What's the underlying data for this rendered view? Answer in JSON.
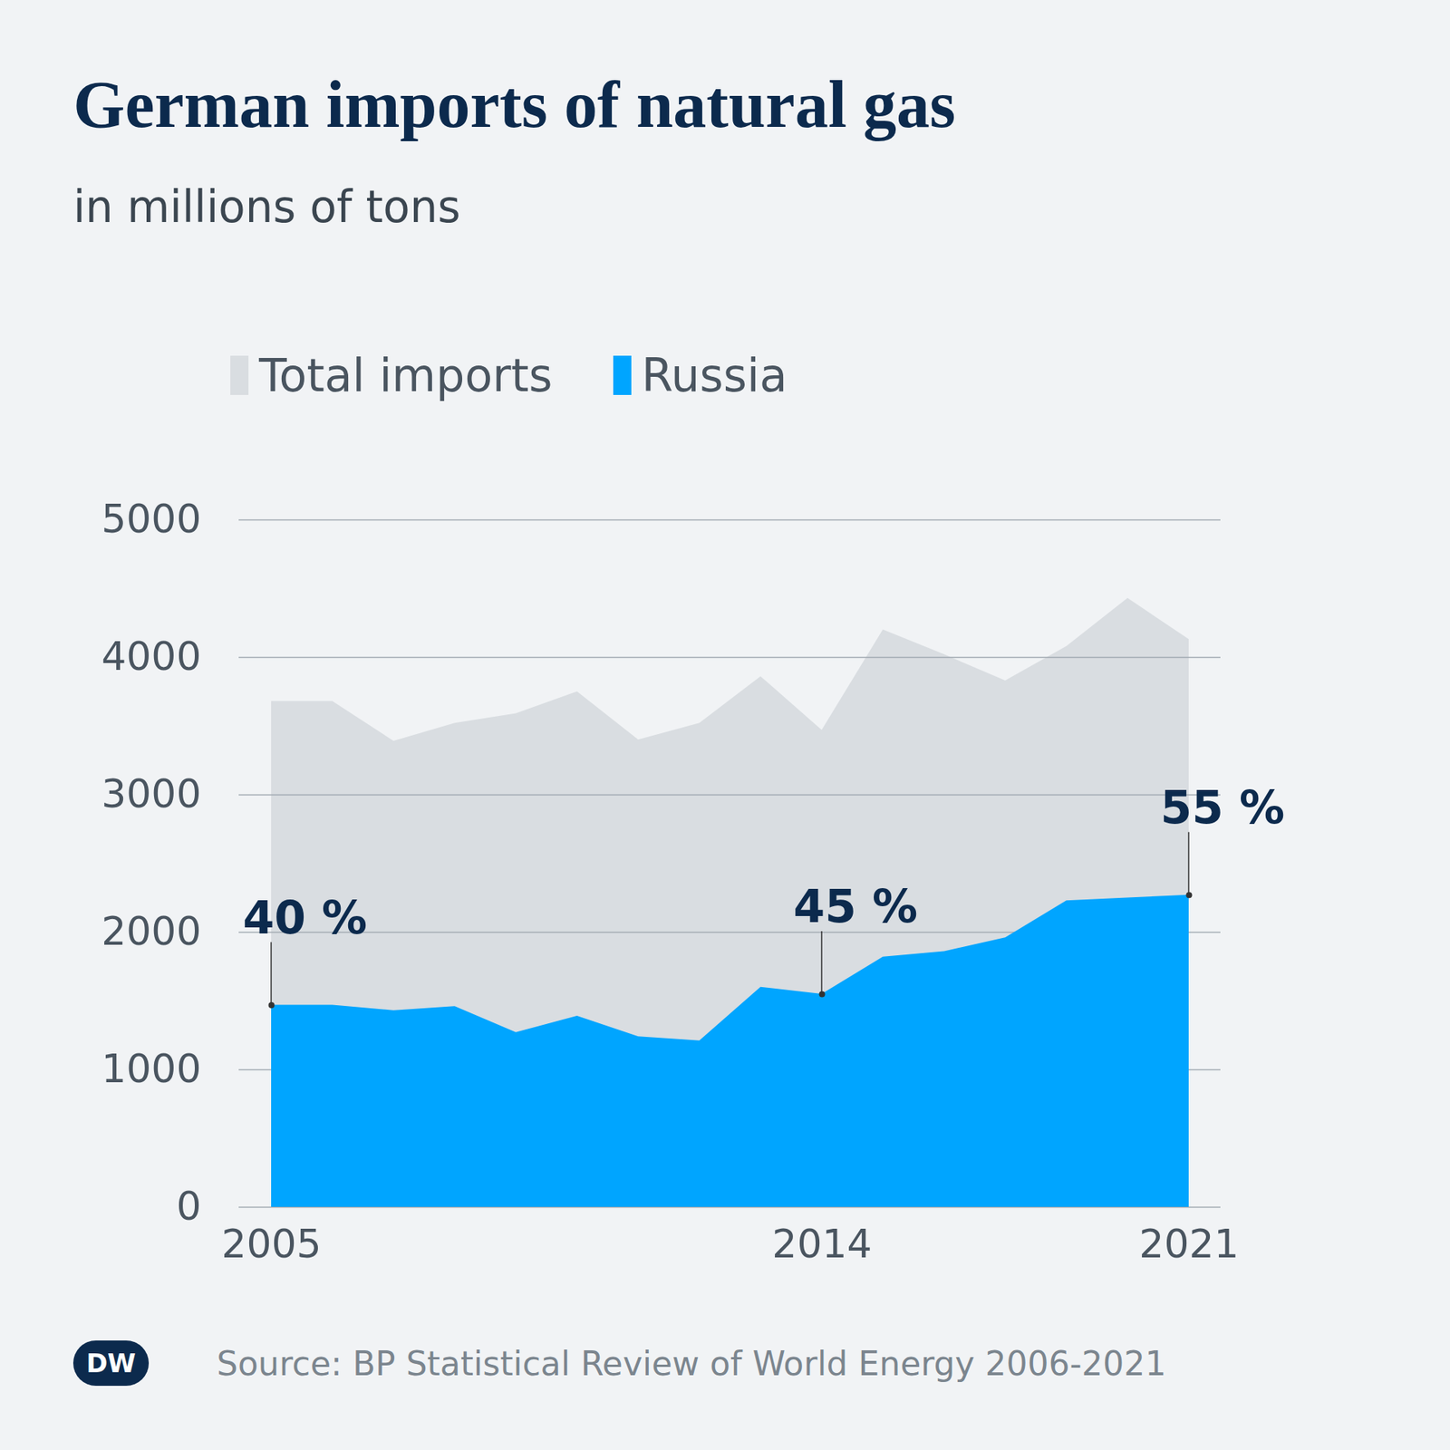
{
  "chart_data": {
    "type": "area",
    "title": "German imports of natural gas",
    "subtitle": "in millions of tons",
    "categories": [
      "2005",
      null,
      null,
      null,
      null,
      null,
      null,
      null,
      null,
      "2014",
      null,
      null,
      null,
      null,
      null,
      "2021"
    ],
    "series": [
      {
        "name": "Total imports",
        "color": "#d9dde1",
        "values": [
          3680,
          3680,
          3390,
          3520,
          3590,
          3750,
          3400,
          3520,
          3860,
          3470,
          4200,
          4020,
          3830,
          4080,
          4430,
          4130
        ]
      },
      {
        "name": "Russia",
        "color": "#00a5ff",
        "values": [
          1470,
          1470,
          1430,
          1460,
          1270,
          1390,
          1240,
          1210,
          1600,
          1550,
          1820,
          1860,
          1960,
          2230,
          2250,
          2270
        ]
      }
    ],
    "stacked": false,
    "ylim": [
      0,
      5000
    ],
    "yticks": [
      0,
      1000,
      2000,
      3000,
      4000,
      5000
    ],
    "grid": true,
    "legend": "top",
    "annotations": [
      {
        "x": "2005",
        "text": "40 %"
      },
      {
        "x": "2014",
        "text": "45 %"
      },
      {
        "x": "2021",
        "text": "55 %"
      }
    ],
    "source": "Source: BP Statistical Review of World Energy 2006-2021",
    "logo": "DW"
  }
}
